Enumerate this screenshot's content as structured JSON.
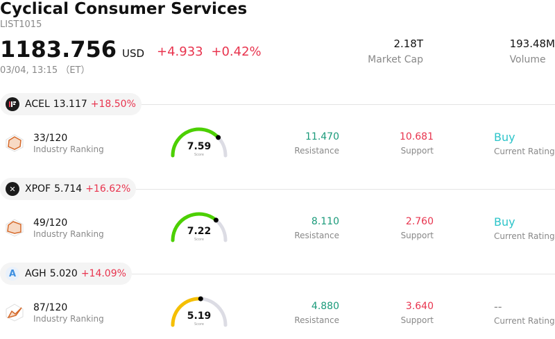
{
  "header": {
    "title": "Cyclical Consumer Services",
    "code": "LIST1015",
    "price": "1183.756",
    "currency": "USD",
    "change_abs": "+4.933",
    "change_pct": "+0.42%",
    "datetime": "03/04, 13:15 （ET）",
    "market_cap_value": "2.18T",
    "market_cap_label": "Market Cap",
    "volume_value": "193.48M",
    "volume_label": "Volume"
  },
  "stocks": [
    {
      "ticker": "ACEL",
      "price": "13.117",
      "change": "+18.50%",
      "logo_text": "",
      "rank": "33/120",
      "rank_label": "Industry Ranking",
      "score": "7.59",
      "score_value": 7.59,
      "score_label": "Score",
      "gauge_color": "#4cd000",
      "resistance": "11.470",
      "resistance_label": "Resistance",
      "support": "10.681",
      "support_label": "Support",
      "rating": "Buy",
      "rating_label": "Current Rating",
      "rating_color": "#2cc4c9"
    },
    {
      "ticker": "XPOF",
      "price": "5.714",
      "change": "+16.62%",
      "logo_text": "✕",
      "rank": "49/120",
      "rank_label": "Industry Ranking",
      "score": "7.22",
      "score_value": 7.22,
      "score_label": "Score",
      "gauge_color": "#4cd000",
      "resistance": "8.110",
      "resistance_label": "Resistance",
      "support": "2.760",
      "support_label": "Support",
      "rating": "Buy",
      "rating_label": "Current Rating",
      "rating_color": "#2cc4c9"
    },
    {
      "ticker": "AGH",
      "price": "5.020",
      "change": "+14.09%",
      "logo_text": "A",
      "rank": "87/120",
      "rank_label": "Industry Ranking",
      "score": "5.19",
      "score_value": 5.19,
      "score_label": "Score",
      "gauge_color": "#f5bf00",
      "resistance": "4.880",
      "resistance_label": "Resistance",
      "support": "3.640",
      "support_label": "Support",
      "rating": "--",
      "rating_label": "Current Rating",
      "rating_color": "#888888"
    }
  ],
  "colors": {
    "up": "#e8344e",
    "resistance": "#1a9a7a",
    "support": "#e8344e",
    "gauge_track": "#dcdce4"
  }
}
